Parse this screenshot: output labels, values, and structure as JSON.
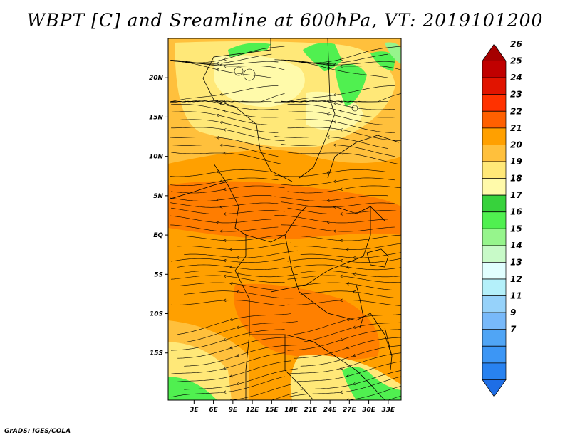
{
  "title": "WBPT [C] and Sreamline at 600hPa, VT: 2019101200",
  "credit": "GrADS: IGES/COLA",
  "map": {
    "lon_range": [
      -1,
      35
    ],
    "lat_range": [
      -21,
      25
    ],
    "lat_ticks": [
      {
        "value": 20,
        "label": "20N"
      },
      {
        "value": 15,
        "label": "15N"
      },
      {
        "value": 10,
        "label": "10N"
      },
      {
        "value": 5,
        "label": "5N"
      },
      {
        "value": 0,
        "label": "EQ"
      },
      {
        "value": -5,
        "label": "5S"
      },
      {
        "value": -10,
        "label": "10S"
      },
      {
        "value": -15,
        "label": "15S"
      }
    ],
    "lon_ticks": [
      {
        "value": 3,
        "label": "3E"
      },
      {
        "value": 6,
        "label": "6E"
      },
      {
        "value": 9,
        "label": "9E"
      },
      {
        "value": 12,
        "label": "12E"
      },
      {
        "value": 15,
        "label": "15E"
      },
      {
        "value": 18,
        "label": "18E"
      },
      {
        "value": 21,
        "label": "21E"
      },
      {
        "value": 24,
        "label": "24E"
      },
      {
        "value": 27,
        "label": "27E"
      },
      {
        "value": 30,
        "label": "30E"
      },
      {
        "value": 33,
        "label": "33E"
      }
    ],
    "wbpt_field": [
      {
        "lat_from": 25,
        "lat_to": 19,
        "value": 19.5
      },
      {
        "lat_from": 19,
        "lat_to": 13,
        "value": 19.5
      },
      {
        "lat_from": 13,
        "lat_to": 9,
        "value": 20.5
      },
      {
        "lat_from": 9,
        "lat_to": -9,
        "value": 21.5
      },
      {
        "lat_from": -9,
        "lat_to": -15,
        "value": 21
      },
      {
        "lat_from": -15,
        "lat_to": -21,
        "value": 19.5
      }
    ],
    "green_areas": [
      {
        "name": "northeast",
        "value": 17.5
      },
      {
        "name": "southwest",
        "value": 17.5
      },
      {
        "name": "southeast",
        "value": 17.5
      }
    ]
  },
  "colorbar": {
    "levels": [
      "7",
      "9",
      "11",
      "12",
      "13",
      "14",
      "15",
      "16",
      "17",
      "18",
      "19",
      "20",
      "21",
      "22",
      "23",
      "24",
      "25",
      "26"
    ],
    "colors": [
      "#1e6ee6",
      "#2882f0",
      "#3c96f5",
      "#50a5f5",
      "#78b9fa",
      "#96d2fa",
      "#b4f0fa",
      "#e1ffff",
      "#c8fac8",
      "#96f58c",
      "#50f050",
      "#37d23c",
      "#fffaaa",
      "#ffe878",
      "#ffc03c",
      "#ffa000",
      "#ff6000",
      "#ff3200",
      "#e11400",
      "#c00000",
      "#a50000"
    ]
  }
}
